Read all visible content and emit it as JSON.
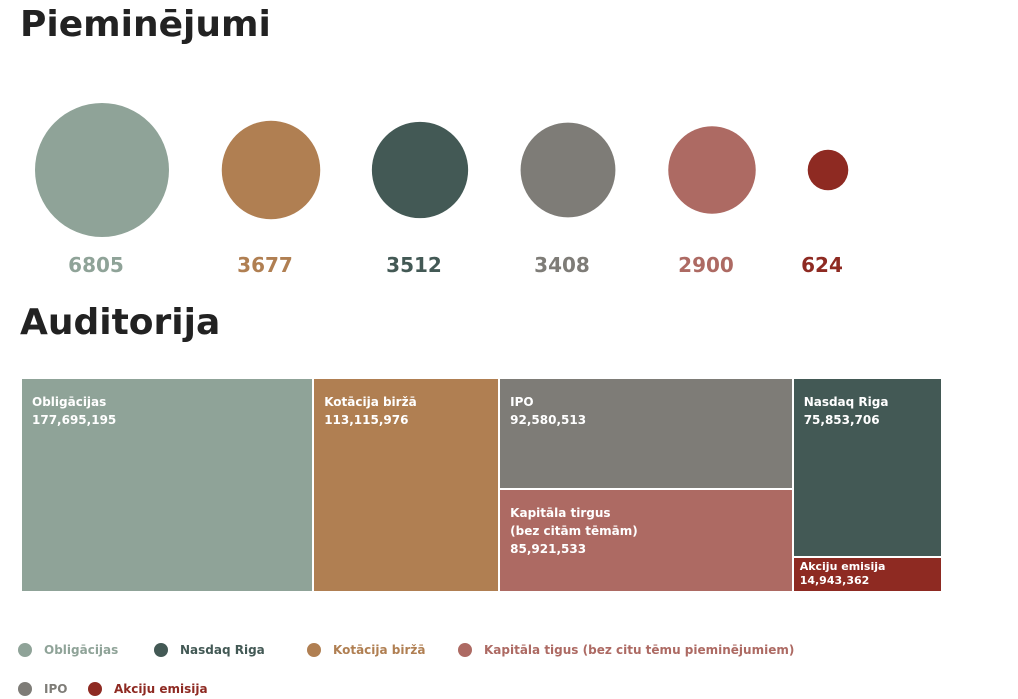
{
  "chart_data": [
    {
      "type": "bubble",
      "title": "Pieminējumi",
      "values": [
        6805,
        3677,
        3512,
        3408,
        2900,
        624
      ],
      "colors": [
        "#8fa398",
        "#b07f52",
        "#435955",
        "#7e7c77",
        "#ad6a63",
        "#8e2a22"
      ]
    },
    {
      "type": "treemap",
      "title": "Auditorija",
      "labels": [
        "Obligācijas",
        "Kotācija biržā",
        "IPO",
        "Kapitāla tirgus\n(bez citām tēmām)",
        "Nasdaq Riga",
        "Akciju emisija"
      ],
      "values": [
        177695195,
        113115976,
        92580513,
        85921533,
        75853706,
        14943362
      ],
      "value_labels": [
        "177,695,195",
        "113,115,976",
        "92,580,513",
        "85,921,533",
        "75,853,706",
        "14,943,362"
      ],
      "colors": [
        "#8fa398",
        "#b07f52",
        "#7e7c77",
        "#ad6a63",
        "#435955",
        "#8e2a22"
      ]
    }
  ],
  "legend": [
    {
      "name": "Obligācijas",
      "color": "#8fa398"
    },
    {
      "name": "Nasdaq Riga",
      "color": "#435955"
    },
    {
      "name": "Kotācija biržā",
      "color": "#b07f52"
    },
    {
      "name": "Kapitāla tigus (bez citu tēmu pieminējumiem)",
      "color": "#ad6a63"
    },
    {
      "name": "IPO",
      "color": "#7e7c77"
    },
    {
      "name": "Akciju emisija",
      "color": "#8e2a22"
    }
  ]
}
